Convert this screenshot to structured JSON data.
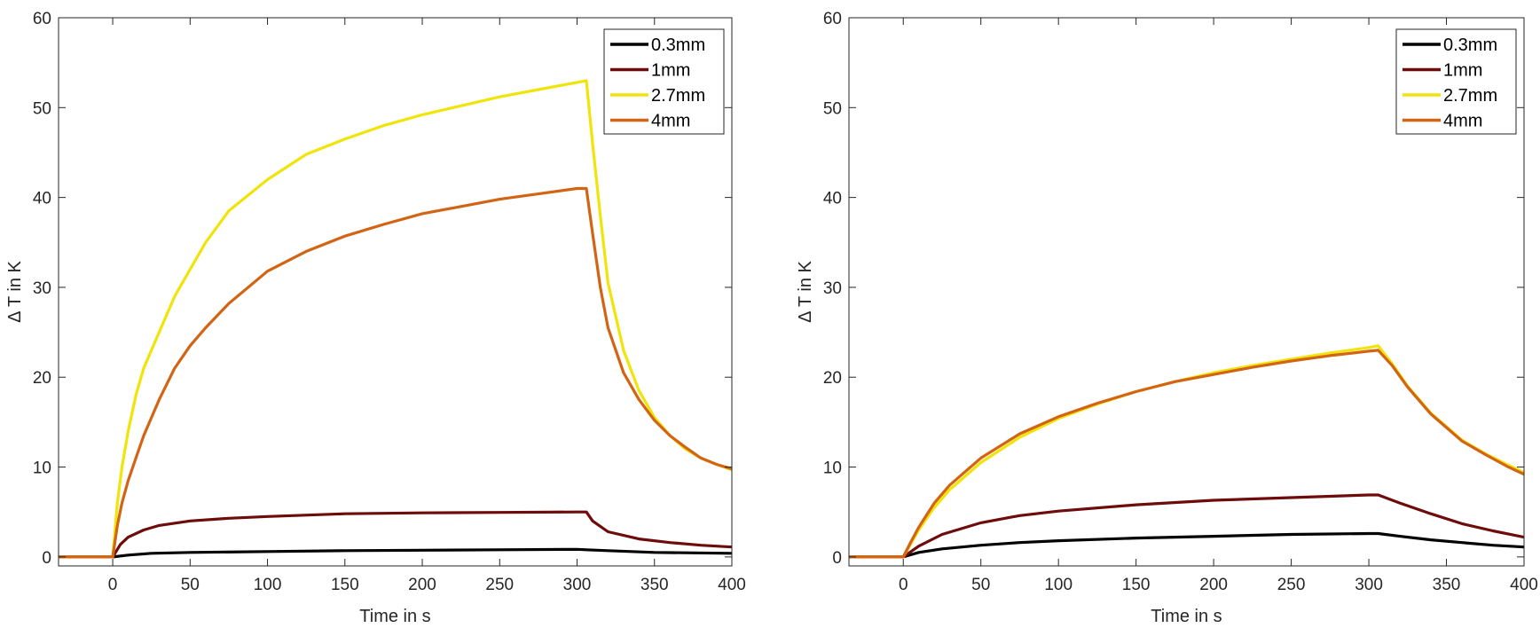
{
  "chart_data": [
    {
      "type": "line",
      "title": "",
      "xlabel": "Time in s",
      "ylabel": "Δ T in K",
      "xlim": [
        -35,
        400
      ],
      "ylim": [
        -1,
        60
      ],
      "xticks": [
        0,
        50,
        100,
        150,
        200,
        250,
        300,
        350,
        400
      ],
      "yticks": [
        0,
        10,
        20,
        30,
        40,
        50,
        60
      ],
      "grid": false,
      "legend_position": "top-right",
      "series": [
        {
          "name": "0.3mm",
          "color": "#000000",
          "x": [
            -35,
            0,
            10,
            25,
            50,
            100,
            150,
            200,
            250,
            300,
            306,
            320,
            350,
            400
          ],
          "y": [
            0,
            0,
            0.2,
            0.4,
            0.5,
            0.6,
            0.7,
            0.75,
            0.8,
            0.85,
            0.8,
            0.7,
            0.5,
            0.4
          ]
        },
        {
          "name": "1mm",
          "color": "#6e0c0c",
          "x": [
            -35,
            0,
            5,
            10,
            20,
            30,
            50,
            75,
            100,
            150,
            200,
            250,
            300,
            306,
            310,
            320,
            340,
            360,
            380,
            400
          ],
          "y": [
            0,
            0,
            1.4,
            2.2,
            3.0,
            3.5,
            4.0,
            4.3,
            4.5,
            4.8,
            4.9,
            4.95,
            5.0,
            5.0,
            4.0,
            2.8,
            2.0,
            1.6,
            1.3,
            1.1
          ]
        },
        {
          "name": "2.7mm",
          "color": "#f0e40a",
          "x": [
            -35,
            0,
            3,
            6,
            10,
            15,
            20,
            30,
            40,
            50,
            60,
            75,
            100,
            125,
            150,
            175,
            200,
            225,
            250,
            275,
            300,
            306,
            310,
            315,
            320,
            330,
            340,
            350,
            360,
            370,
            380,
            390,
            400
          ],
          "y": [
            0,
            0,
            6,
            10,
            14,
            18,
            21,
            25,
            29,
            32,
            35,
            38.5,
            42,
            44.8,
            46.5,
            48,
            49.2,
            50.2,
            51.2,
            52,
            52.8,
            53,
            46,
            38,
            30.5,
            23,
            18.5,
            15.5,
            13.5,
            12,
            11,
            10.3,
            9.7
          ]
        },
        {
          "name": "4mm",
          "color": "#d26414",
          "x": [
            -35,
            0,
            3,
            6,
            10,
            15,
            20,
            30,
            40,
            50,
            60,
            75,
            100,
            125,
            150,
            175,
            200,
            225,
            250,
            275,
            300,
            306,
            310,
            315,
            320,
            330,
            340,
            350,
            360,
            370,
            380,
            390,
            400
          ],
          "y": [
            0,
            0,
            3.5,
            6,
            8.5,
            11,
            13.5,
            17.5,
            21,
            23.5,
            25.5,
            28.2,
            31.8,
            34,
            35.7,
            37,
            38.2,
            39,
            39.8,
            40.4,
            41,
            41,
            36,
            30,
            25.5,
            20.5,
            17.5,
            15.2,
            13.5,
            12.2,
            11,
            10.3,
            9.8
          ]
        }
      ]
    },
    {
      "type": "line",
      "title": "",
      "xlabel": "Time in s",
      "ylabel": "Δ T in K",
      "xlim": [
        -35,
        400
      ],
      "ylim": [
        -1,
        60
      ],
      "xticks": [
        0,
        50,
        100,
        150,
        200,
        250,
        300,
        350,
        400
      ],
      "yticks": [
        0,
        10,
        20,
        30,
        40,
        50,
        60
      ],
      "grid": false,
      "legend_position": "top-right",
      "series": [
        {
          "name": "0.3mm",
          "color": "#000000",
          "x": [
            -35,
            0,
            10,
            25,
            50,
            75,
            100,
            150,
            200,
            250,
            300,
            306,
            320,
            340,
            360,
            380,
            400
          ],
          "y": [
            0,
            0,
            0.5,
            0.9,
            1.3,
            1.6,
            1.8,
            2.1,
            2.3,
            2.5,
            2.6,
            2.6,
            2.3,
            1.9,
            1.6,
            1.3,
            1.1
          ]
        },
        {
          "name": "1mm",
          "color": "#6e0c0c",
          "x": [
            -35,
            0,
            10,
            25,
            50,
            75,
            100,
            150,
            200,
            250,
            300,
            306,
            320,
            340,
            360,
            380,
            400
          ],
          "y": [
            0,
            0,
            1.2,
            2.5,
            3.8,
            4.6,
            5.1,
            5.8,
            6.3,
            6.6,
            6.9,
            6.9,
            6.0,
            4.8,
            3.7,
            2.9,
            2.2
          ]
        },
        {
          "name": "2.7mm",
          "color": "#f0e40a",
          "x": [
            -35,
            0,
            5,
            10,
            20,
            30,
            50,
            75,
            100,
            125,
            150,
            175,
            200,
            225,
            250,
            275,
            300,
            306,
            315,
            325,
            340,
            350,
            360,
            375,
            390,
            400
          ],
          "y": [
            0,
            0,
            1.5,
            3,
            5.5,
            7.5,
            10.5,
            13.3,
            15.4,
            17,
            18.4,
            19.5,
            20.5,
            21.3,
            22,
            22.7,
            23.3,
            23.5,
            21.5,
            19,
            16,
            14.5,
            13,
            11.5,
            10.2,
            9.4
          ]
        },
        {
          "name": "4mm",
          "color": "#d26414",
          "x": [
            -35,
            0,
            5,
            10,
            20,
            30,
            50,
            75,
            100,
            125,
            150,
            175,
            200,
            225,
            250,
            275,
            300,
            306,
            315,
            325,
            340,
            350,
            360,
            375,
            390,
            400
          ],
          "y": [
            0,
            0,
            1.7,
            3.3,
            6,
            8,
            11,
            13.7,
            15.6,
            17.1,
            18.4,
            19.5,
            20.3,
            21.1,
            21.8,
            22.4,
            22.9,
            23,
            21.3,
            18.9,
            15.9,
            14.4,
            12.9,
            11.4,
            10,
            9.2
          ]
        }
      ]
    }
  ]
}
